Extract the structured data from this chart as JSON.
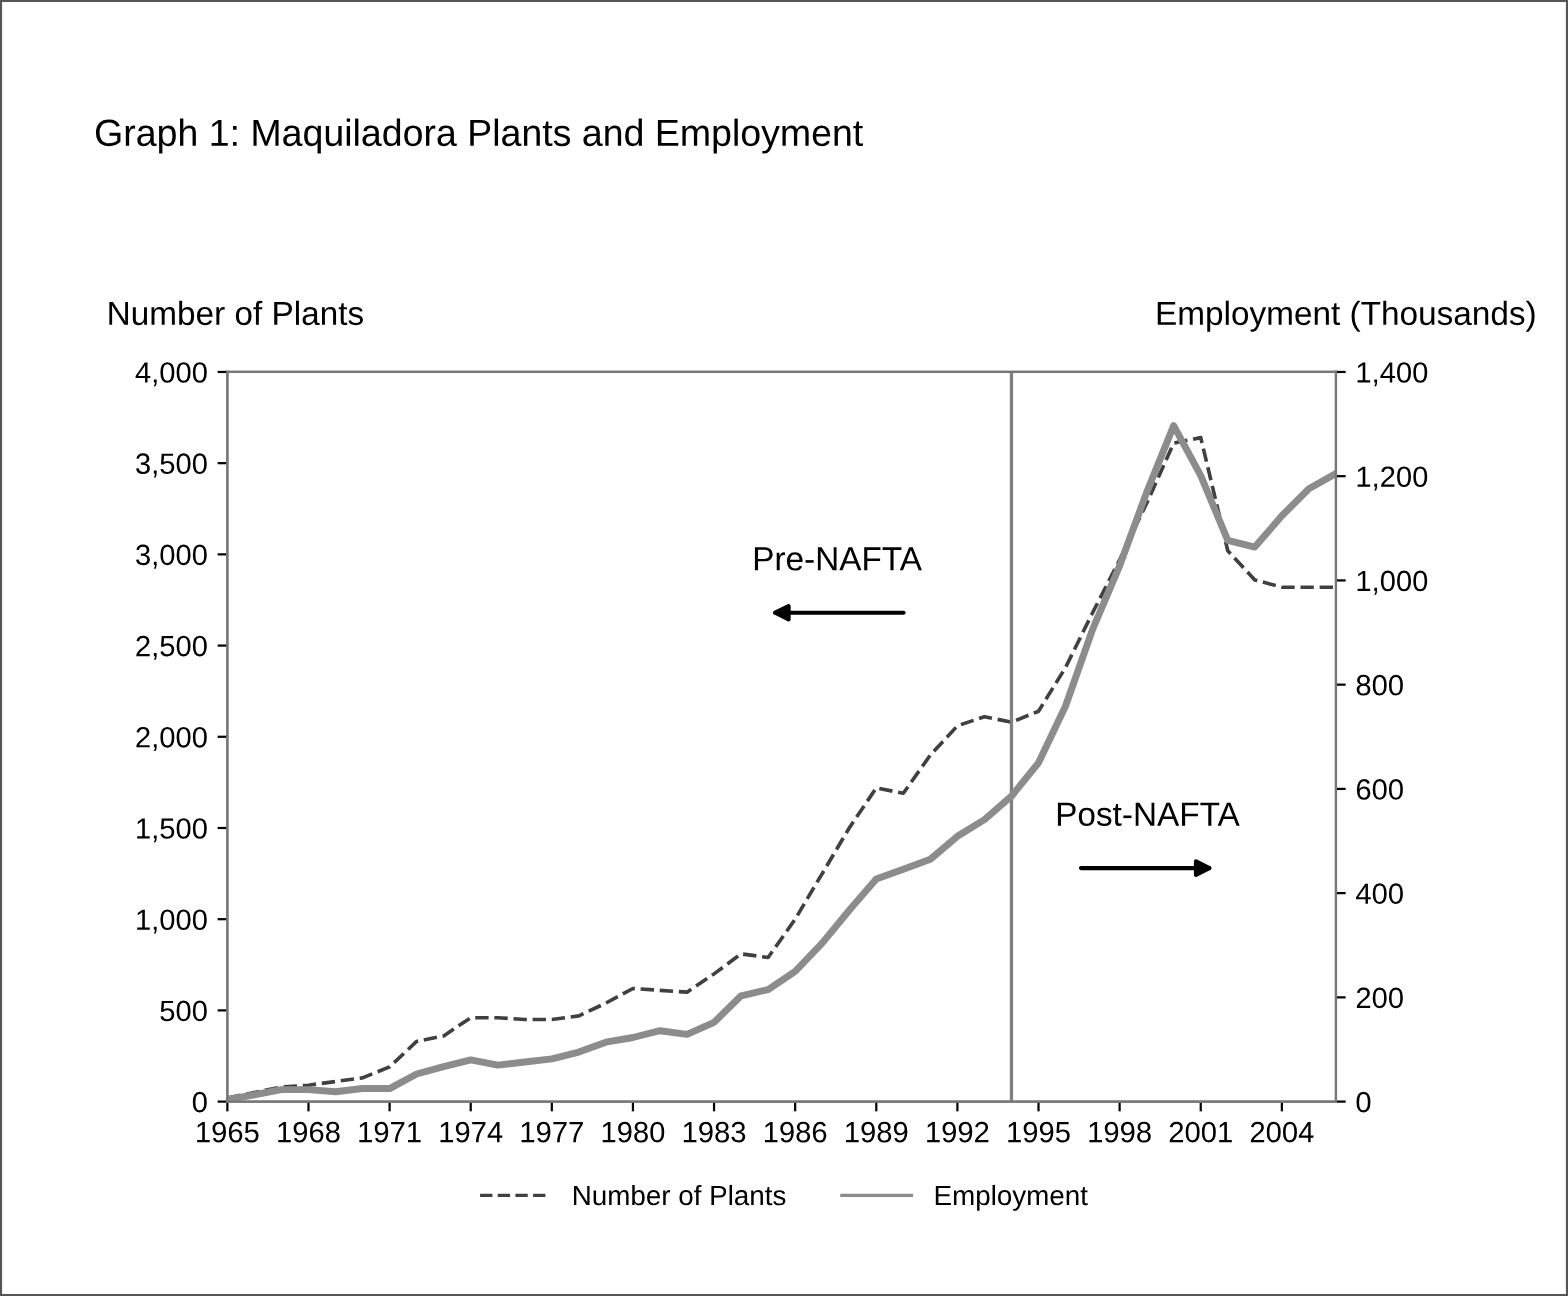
{
  "chart_data": {
    "type": "line",
    "title": "Graph 1: Maquiladora Plants and Employment",
    "ylabel": "Number of Plants",
    "y2label": "Employment (Thousands)",
    "x": [
      1965,
      1966,
      1967,
      1968,
      1969,
      1970,
      1971,
      1972,
      1973,
      1974,
      1975,
      1976,
      1977,
      1978,
      1979,
      1980,
      1981,
      1982,
      1983,
      1984,
      1985,
      1986,
      1987,
      1988,
      1989,
      1990,
      1991,
      1992,
      1993,
      1994,
      1995,
      1996,
      1997,
      1998,
      1999,
      2000,
      2001,
      2002,
      2003,
      2004,
      2005,
      2006
    ],
    "series": [
      {
        "name": "Number of Plants",
        "color": "#404040",
        "line_style": "dashed",
        "values": [
          20,
          50,
          80,
          90,
          110,
          130,
          190,
          330,
          360,
          460,
          460,
          450,
          450,
          470,
          540,
          620,
          610,
          600,
          700,
          810,
          790,
          1000,
          1250,
          1500,
          1720,
          1690,
          1900,
          2060,
          2110,
          2080,
          2140,
          2380,
          2680,
          2970,
          3280,
          3610,
          3640,
          3020,
          2860,
          2820,
          2820,
          2820
        ]
      },
      {
        "name": "Employment",
        "color": "#8c8c8c",
        "line_style": "solid",
        "axis": "y2",
        "values": [
          4,
          13,
          23,
          23,
          19,
          25,
          25,
          53,
          67,
          80,
          70,
          76,
          82,
          95,
          114,
          123,
          136,
          129,
          152,
          203,
          215,
          250,
          304,
          367,
          427,
          446,
          465,
          509,
          541,
          586,
          650,
          759,
          906,
          1028,
          1169,
          1297,
          1201,
          1077,
          1064,
          1124,
          1176,
          1205
        ]
      }
    ],
    "xlim": [
      1965,
      2006
    ],
    "xticks": [
      1965,
      1968,
      1971,
      1974,
      1977,
      1980,
      1983,
      1986,
      1989,
      1992,
      1995,
      1998,
      2001,
      2004
    ],
    "ylim": [
      0,
      4000
    ],
    "yticks": [
      0,
      500,
      {
        "value": 1000,
        "label": "1,000"
      },
      {
        "value": 1500,
        "label": "1,500"
      },
      {
        "value": 2000,
        "label": "2,000"
      },
      {
        "value": 2500,
        "label": "2,500"
      },
      {
        "value": 3000,
        "label": "3,000"
      },
      {
        "value": 3500,
        "label": "3,500"
      },
      {
        "value": 4000,
        "label": "4,000"
      }
    ],
    "y2lim": [
      0,
      1400
    ],
    "y2ticks": [
      0,
      200,
      400,
      600,
      800,
      {
        "value": 1000,
        "label": "1,000"
      },
      {
        "value": 1200,
        "label": "1,200"
      },
      {
        "value": 1400,
        "label": "1,400"
      }
    ],
    "ref_lines": [
      {
        "axis": "x",
        "value": 1994,
        "color": "#808080"
      }
    ],
    "annotations": [
      "Pre-NAFTA",
      "Post-NAFTA"
    ],
    "legend": "bottom",
    "grid": false
  }
}
